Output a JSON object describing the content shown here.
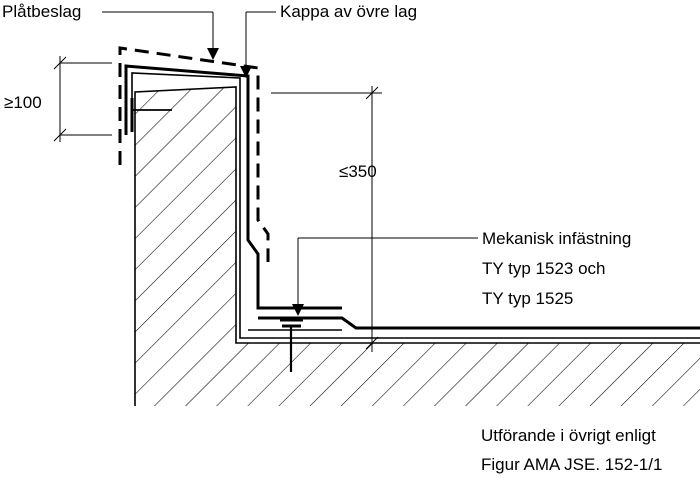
{
  "labels": {
    "platbeslag": "Plåtbeslag",
    "kappa": "Kappa av övre lag",
    "dim_100": "≥100",
    "dim_350": "≤350",
    "mekanisk_1": "Mekanisk infästning",
    "mekanisk_2": "TY typ 1523 och",
    "mekanisk_3": "TY typ 1525",
    "note_1": "Utförande i övrigt enligt",
    "note_2": "Figur AMA JSE. 152-1/1"
  }
}
